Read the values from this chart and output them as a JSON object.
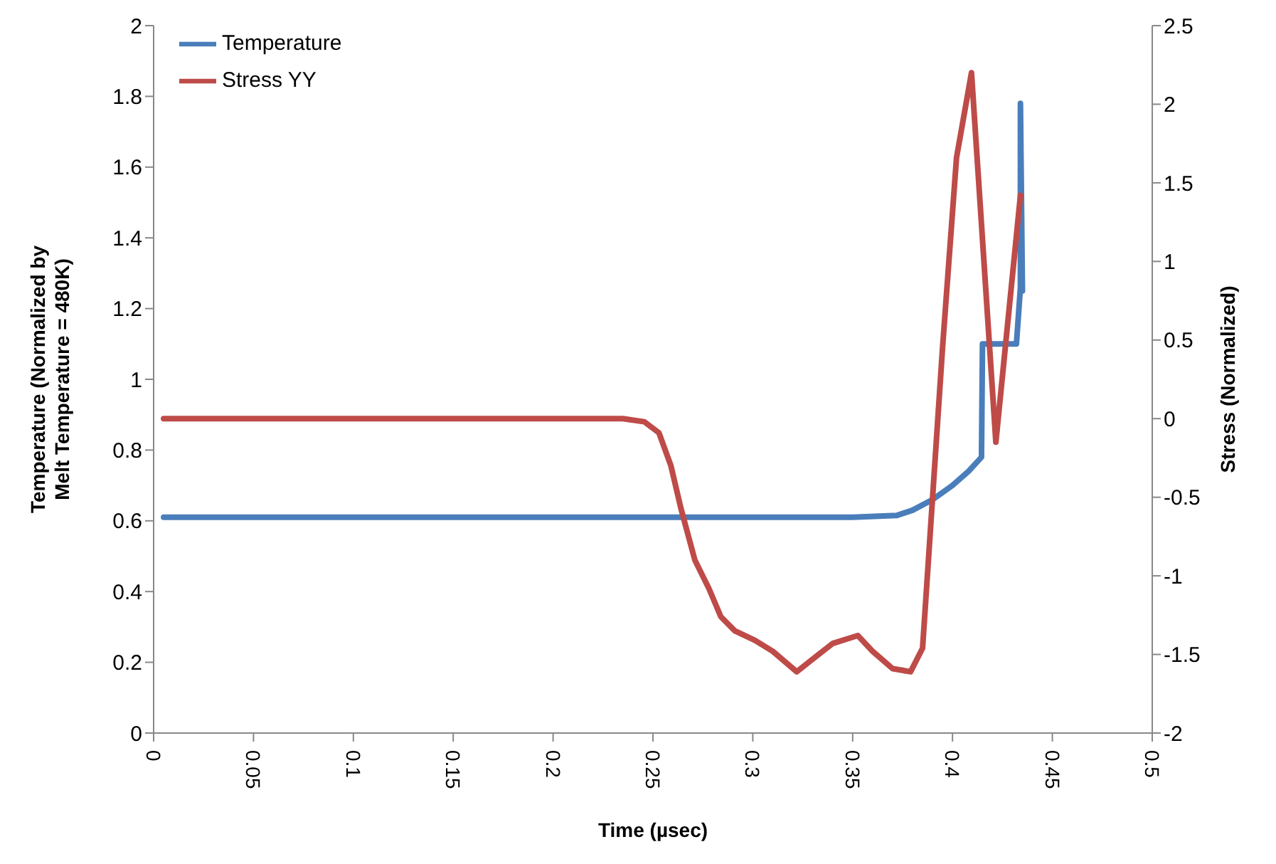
{
  "chart_data": {
    "type": "line",
    "xlabel": "Time (µsec)",
    "ylabel": "Temperature (Normalized by Melt Temperature = 480K)",
    "y2label": "Stress (Normalized)",
    "xlim": [
      0,
      0.5
    ],
    "xticks": [
      0,
      0.05,
      0.1,
      0.15,
      0.2,
      0.25,
      0.3,
      0.35,
      0.4,
      0.45,
      0.5
    ],
    "ylim": [
      0,
      2
    ],
    "yticks": [
      0,
      0.2,
      0.4,
      0.6,
      0.8,
      1,
      1.2,
      1.4,
      1.6,
      1.8,
      2
    ],
    "y2lim": [
      -2,
      2.5
    ],
    "y2ticks": [
      -2,
      -1.5,
      -1,
      -0.5,
      0,
      0.5,
      1,
      1.5,
      2,
      2.5
    ],
    "grid": false,
    "legend": "top left",
    "marker": "none",
    "line_style": "solid",
    "series": [
      {
        "name": "Temperature",
        "color": "#4a7ebb",
        "x": [
          0.005,
          0.05,
          0.1,
          0.15,
          0.2,
          0.25,
          0.3,
          0.35,
          0.372,
          0.38,
          0.39,
          0.4,
          0.408,
          0.4145,
          0.415,
          0.432,
          0.434,
          0.434,
          0.435
        ],
        "values": [
          0.61,
          0.61,
          0.61,
          0.61,
          0.61,
          0.61,
          0.61,
          0.61,
          0.615,
          0.63,
          0.66,
          0.7,
          0.74,
          0.78,
          1.1,
          1.1,
          1.26,
          1.78,
          1.25
        ]
      },
      {
        "name": "Stress YY",
        "color": "#be4b48",
        "axis": "y2",
        "x": [
          0.005,
          0.05,
          0.1,
          0.15,
          0.2,
          0.235,
          0.2457,
          0.253,
          0.259,
          0.264,
          0.271,
          0.278,
          0.284,
          0.291,
          0.301,
          0.31,
          0.322,
          0.331,
          0.34,
          0.3526,
          0.36,
          0.37,
          0.379,
          0.385,
          0.395,
          0.402,
          0.4095,
          0.4217,
          0.434
        ],
        "values": [
          0,
          0,
          0,
          0,
          0,
          0,
          -0.02,
          -0.09,
          -0.3,
          -0.57,
          -0.9,
          -1.08,
          -1.26,
          -1.35,
          -1.41,
          -1.48,
          -1.61,
          -1.52,
          -1.43,
          -1.38,
          -1.48,
          -1.59,
          -1.61,
          -1.46,
          0.45,
          1.66,
          2.2,
          -0.15,
          1.42
        ]
      }
    ]
  }
}
